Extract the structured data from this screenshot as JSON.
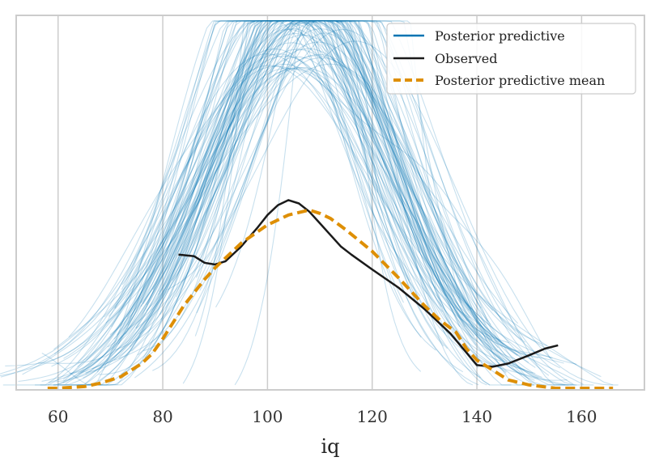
{
  "chart_data": {
    "type": "line",
    "title": "",
    "xlabel": "iq",
    "ylabel": "",
    "xlim": [
      52,
      172
    ],
    "ylim": [
      0,
      0.0227
    ],
    "xticks": [
      60,
      80,
      100,
      120,
      140,
      160
    ],
    "xtick_labels": [
      "60",
      "80",
      "100",
      "120",
      "140",
      "160"
    ],
    "grid": "vertical",
    "legend_position": "top-right",
    "colors": {
      "posterior_predictive": "#0173b2",
      "observed": "#1a1a1a",
      "posterior_predictive_mean": "#de8f05",
      "grid": "#cccccc",
      "frame": "#cccccc"
    },
    "legend": [
      {
        "label": "Posterior predictive",
        "color": "#0173b2",
        "style": "solid"
      },
      {
        "label": "Observed",
        "color": "#1a1a1a",
        "style": "solid"
      },
      {
        "label": "Posterior predictive mean",
        "color": "#de8f05",
        "style": "dashed"
      }
    ],
    "series": [
      {
        "name": "Observed",
        "x": [
          83,
          86,
          88,
          90,
          92,
          95,
          98,
          100,
          102,
          104,
          106,
          108,
          110,
          112,
          114,
          116,
          120,
          125,
          130,
          135,
          140,
          143,
          146,
          150,
          153,
          155.5
        ],
        "y": [
          0.0082,
          0.0081,
          0.0077,
          0.0076,
          0.0078,
          0.0087,
          0.0098,
          0.0106,
          0.0112,
          0.0115,
          0.0113,
          0.0108,
          0.0101,
          0.0094,
          0.0087,
          0.0082,
          0.0073,
          0.0062,
          0.0049,
          0.0034,
          0.0015,
          0.0014,
          0.0016,
          0.0021,
          0.0025,
          0.0027
        ]
      },
      {
        "name": "Posterior predictive mean",
        "x": [
          58,
          60,
          65,
          68,
          70,
          72,
          74,
          76,
          78,
          80,
          82,
          84,
          86,
          88,
          90,
          95,
          100,
          104,
          108,
          110,
          112,
          115,
          120,
          125,
          130,
          133,
          136,
          138,
          140,
          143,
          146,
          150,
          155,
          160,
          166
        ],
        "y": [
          0.0001,
          0.0001,
          0.0002,
          0.0004,
          0.0006,
          0.0008,
          0.0012,
          0.0016,
          0.0022,
          0.0031,
          0.0041,
          0.0051,
          0.0059,
          0.0067,
          0.0074,
          0.0089,
          0.01,
          0.0106,
          0.0109,
          0.0107,
          0.0104,
          0.0097,
          0.0084,
          0.0068,
          0.0051,
          0.0042,
          0.0035,
          0.0025,
          0.0018,
          0.0012,
          0.0006,
          0.0003,
          0.0001,
          0.0001,
          0.0001
        ]
      }
    ],
    "posterior_predictive_draws": 100,
    "posterior_predictive_seed": 7
  }
}
